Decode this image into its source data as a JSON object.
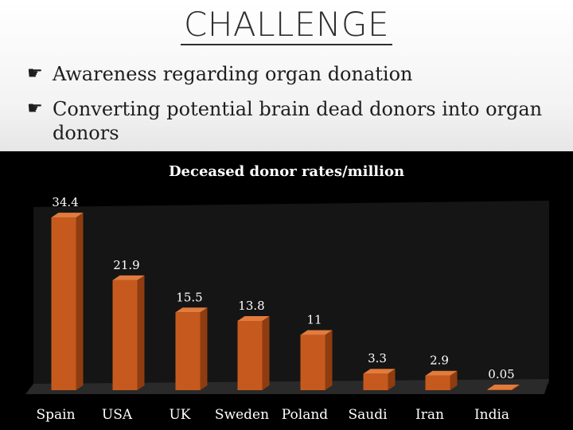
{
  "slide": {
    "title": "CHALLENGE",
    "bullets": [
      {
        "icon": "pointing-hand-icon",
        "text": "Awareness regarding organ donation"
      },
      {
        "icon": "pointing-hand-icon",
        "text": "Converting potential brain dead donors into organ donors"
      }
    ]
  },
  "chart_data": {
    "type": "bar",
    "title": "Deceased donor rates/million",
    "categories": [
      "Spain",
      "USA",
      "UK",
      "Sweden",
      "Poland",
      "Saudi",
      "Iran",
      "India"
    ],
    "values": [
      34.4,
      21.9,
      15.5,
      13.8,
      11,
      3.3,
      2.9,
      0.05
    ],
    "data_labels": [
      "34.4",
      "21.9",
      "15.5",
      "13.8",
      "11",
      "3.3",
      "2.9",
      "0.05"
    ],
    "ylim": [
      0,
      36
    ],
    "grid": false,
    "legend": "none",
    "style": "3d-column",
    "colors": {
      "bar_front": "#c65a1e",
      "bar_top": "#e27b3c",
      "bar_side": "#8f3c10",
      "background": "#000000",
      "text": "#ffffff",
      "floor": "#2a2a2a",
      "wall": "#151515"
    }
  }
}
